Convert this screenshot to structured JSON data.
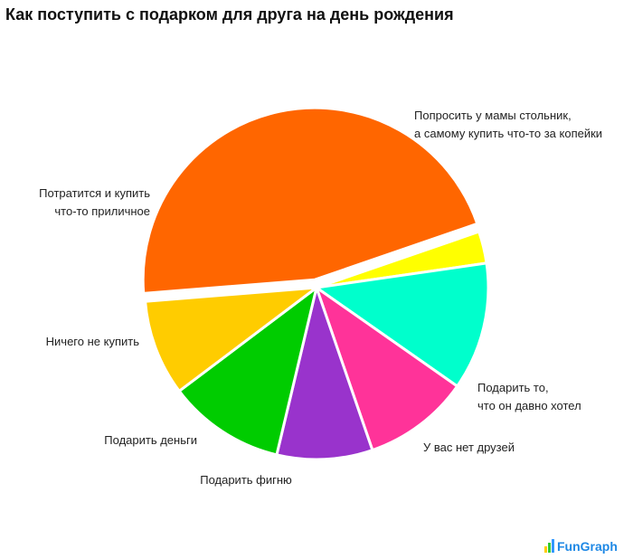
{
  "chart_data": {
    "type": "pie",
    "title": "Как поступить с подарком для друга на день рождения",
    "start_angle_deg": 19,
    "slices": [
      {
        "label": [
          "Подарить то,",
          "что он давно хотел"
        ],
        "value": 3,
        "color": "#FFFF00"
      },
      {
        "label": [
          "У вас нет друзей"
        ],
        "value": 12,
        "color": "#00FFCC"
      },
      {
        "label": [
          "Подарить фигню"
        ],
        "value": 10,
        "color": "#FF3399"
      },
      {
        "label": [
          "Подарить деньги"
        ],
        "value": 9,
        "color": "#9933CC"
      },
      {
        "label": [
          "Ничего не купить"
        ],
        "value": 11,
        "color": "#00CC00"
      },
      {
        "label": [
          "Потратится и купить",
          "что-то приличное"
        ],
        "value": 9,
        "color": "#FFCC00"
      },
      {
        "label": [
          "Попросить у мамы стольник,",
          "а самому купить что-то за копейки"
        ],
        "value": 46,
        "color": "#FF6600",
        "exploded": true
      }
    ],
    "legend": "none"
  },
  "watermark": {
    "text": "FunGraph",
    "color": "#1e88e5"
  }
}
